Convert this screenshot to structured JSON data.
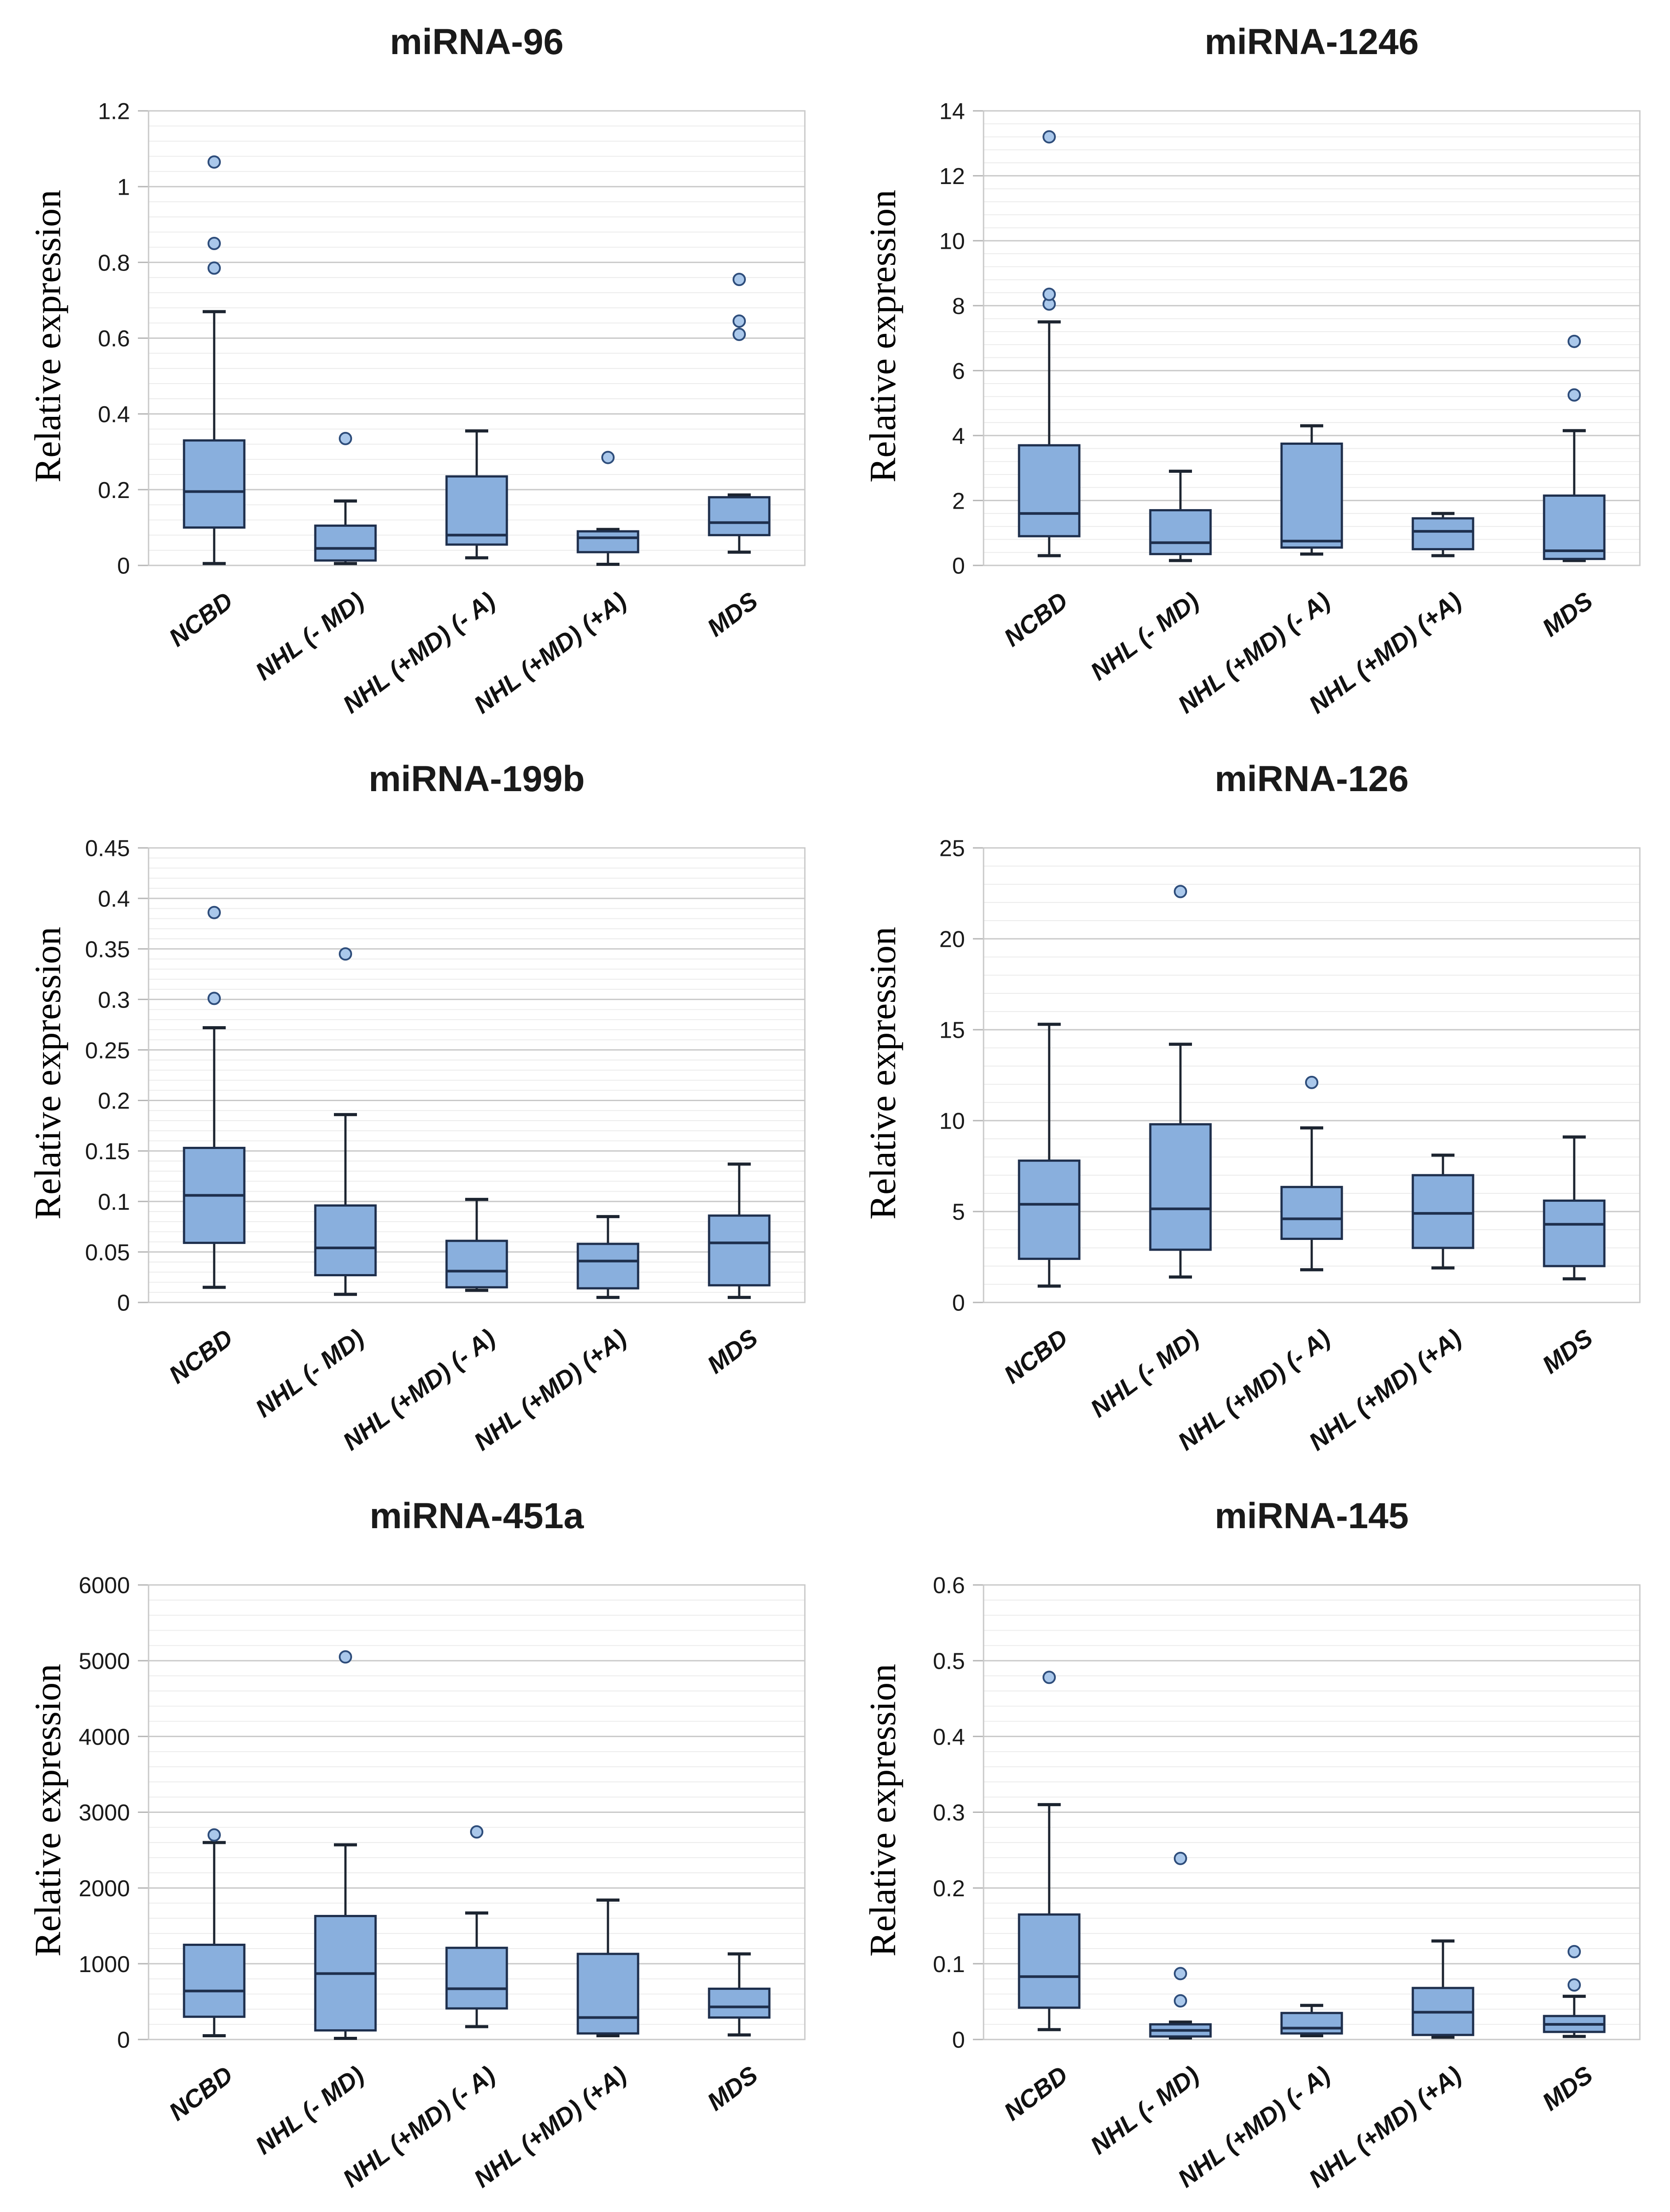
{
  "page": {
    "background": "#ffffff"
  },
  "palette": {
    "box_fill": "#89afdd",
    "box_stroke": "#1e2f4d",
    "whisker": "#1c2430",
    "outlier_fill": "#aac8eb",
    "outlier_stroke": "#2e4d7b",
    "grid_major": "#c9c9c9",
    "grid_minor": "#ececec",
    "axis_tick": "#b5b5b5",
    "text": "#1a1a1a"
  },
  "shared": {
    "categories": [
      "NCBD",
      "NHL (- MD)",
      "NHL (+MD) (- A)",
      "NHL (+MD) (+A)",
      "MDS"
    ]
  },
  "chart_data": [
    {
      "type": "box",
      "title": "miRNA-96",
      "ylabel": "Relative expression",
      "ymin": 0,
      "ymax": 1.2,
      "ytick_major": 0.2,
      "ytick_minor": 0.04,
      "grid": true,
      "legend": false,
      "boxes": [
        {
          "category": "NCBD",
          "whisker_min": 0.005,
          "q1": 0.1,
          "median": 0.195,
          "q3": 0.33,
          "whisker_max": 0.67,
          "outliers": [
            0.785,
            0.85,
            1.065
          ]
        },
        {
          "category": "NHL (- MD)",
          "whisker_min": 0.005,
          "q1": 0.013,
          "median": 0.045,
          "q3": 0.105,
          "whisker_max": 0.17,
          "outliers": [
            0.335
          ]
        },
        {
          "category": "NHL (+MD) (- A)",
          "whisker_min": 0.02,
          "q1": 0.055,
          "median": 0.08,
          "q3": 0.235,
          "whisker_max": 0.355,
          "outliers": []
        },
        {
          "category": "NHL (+MD) (+A)",
          "whisker_min": 0.003,
          "q1": 0.035,
          "median": 0.073,
          "q3": 0.09,
          "whisker_max": 0.095,
          "outliers": [
            0.285
          ]
        },
        {
          "category": "MDS",
          "whisker_min": 0.035,
          "q1": 0.08,
          "median": 0.113,
          "q3": 0.18,
          "whisker_max": 0.186,
          "outliers": [
            0.61,
            0.645,
            0.755
          ]
        }
      ]
    },
    {
      "type": "box",
      "title": "miRNA-1246",
      "ylabel": "Relative expression",
      "ymin": 0,
      "ymax": 14,
      "ytick_major": 2,
      "ytick_minor": 0.4,
      "grid": true,
      "legend": false,
      "boxes": [
        {
          "category": "NCBD",
          "whisker_min": 0.3,
          "q1": 0.9,
          "median": 1.6,
          "q3": 3.7,
          "whisker_max": 7.5,
          "outliers": [
            8.05,
            8.35,
            13.2
          ]
        },
        {
          "category": "NHL (- MD)",
          "whisker_min": 0.15,
          "q1": 0.35,
          "median": 0.7,
          "q3": 1.7,
          "whisker_max": 2.9,
          "outliers": []
        },
        {
          "category": "NHL (+MD) (- A)",
          "whisker_min": 0.35,
          "q1": 0.55,
          "median": 0.75,
          "q3": 3.75,
          "whisker_max": 4.3,
          "outliers": []
        },
        {
          "category": "NHL (+MD) (+A)",
          "whisker_min": 0.3,
          "q1": 0.5,
          "median": 1.05,
          "q3": 1.45,
          "whisker_max": 1.6,
          "outliers": []
        },
        {
          "category": "MDS",
          "whisker_min": 0.15,
          "q1": 0.2,
          "median": 0.45,
          "q3": 2.15,
          "whisker_max": 4.15,
          "outliers": [
            5.25,
            6.9
          ]
        }
      ]
    },
    {
      "type": "box",
      "title": "miRNA-199b",
      "ylabel": "Relative expression",
      "ymin": 0,
      "ymax": 0.45,
      "ytick_major": 0.05,
      "ytick_minor": 0.01,
      "grid": true,
      "legend": false,
      "boxes": [
        {
          "category": "NCBD",
          "whisker_min": 0.015,
          "q1": 0.059,
          "median": 0.106,
          "q3": 0.153,
          "whisker_max": 0.272,
          "outliers": [
            0.301,
            0.386
          ]
        },
        {
          "category": "NHL (- MD)",
          "whisker_min": 0.008,
          "q1": 0.027,
          "median": 0.054,
          "q3": 0.096,
          "whisker_max": 0.186,
          "outliers": [
            0.345
          ]
        },
        {
          "category": "NHL (+MD) (- A)",
          "whisker_min": 0.012,
          "q1": 0.015,
          "median": 0.031,
          "q3": 0.061,
          "whisker_max": 0.102,
          "outliers": []
        },
        {
          "category": "NHL (+MD) (+A)",
          "whisker_min": 0.005,
          "q1": 0.014,
          "median": 0.041,
          "q3": 0.058,
          "whisker_max": 0.085,
          "outliers": []
        },
        {
          "category": "MDS",
          "whisker_min": 0.005,
          "q1": 0.017,
          "median": 0.059,
          "q3": 0.086,
          "whisker_max": 0.137,
          "outliers": []
        }
      ]
    },
    {
      "type": "box",
      "title": "miRNA-126",
      "ylabel": "Relative expression",
      "ymin": 0,
      "ymax": 25,
      "ytick_major": 5,
      "ytick_minor": 1,
      "grid": true,
      "legend": false,
      "boxes": [
        {
          "category": "NCBD",
          "whisker_min": 0.9,
          "q1": 2.4,
          "median": 5.4,
          "q3": 7.8,
          "whisker_max": 15.3,
          "outliers": []
        },
        {
          "category": "NHL (- MD)",
          "whisker_min": 1.4,
          "q1": 2.9,
          "median": 5.15,
          "q3": 9.8,
          "whisker_max": 14.2,
          "outliers": [
            22.6
          ]
        },
        {
          "category": "NHL (+MD) (- A)",
          "whisker_min": 1.8,
          "q1": 3.5,
          "median": 4.6,
          "q3": 6.35,
          "whisker_max": 9.6,
          "outliers": [
            12.1
          ]
        },
        {
          "category": "NHL (+MD) (+A)",
          "whisker_min": 1.9,
          "q1": 3.0,
          "median": 4.9,
          "q3": 7.0,
          "whisker_max": 8.1,
          "outliers": []
        },
        {
          "category": "MDS",
          "whisker_min": 1.3,
          "q1": 2.0,
          "median": 4.3,
          "q3": 5.6,
          "whisker_max": 9.1,
          "outliers": []
        }
      ]
    },
    {
      "type": "box",
      "title": "miRNA-451a",
      "ylabel": "Relative expression",
      "ymin": 0,
      "ymax": 6000,
      "ytick_major": 1000,
      "ytick_minor": 200,
      "grid": true,
      "legend": false,
      "boxes": [
        {
          "category": "NCBD",
          "whisker_min": 50,
          "q1": 300,
          "median": 640,
          "q3": 1250,
          "whisker_max": 2600,
          "outliers": [
            2700
          ]
        },
        {
          "category": "NHL (- MD)",
          "whisker_min": 15,
          "q1": 120,
          "median": 870,
          "q3": 1630,
          "whisker_max": 2570,
          "outliers": [
            5050
          ]
        },
        {
          "category": "NHL (+MD) (- A)",
          "whisker_min": 170,
          "q1": 410,
          "median": 670,
          "q3": 1210,
          "whisker_max": 1670,
          "outliers": [
            2740
          ]
        },
        {
          "category": "NHL (+MD) (+A)",
          "whisker_min": 50,
          "q1": 80,
          "median": 290,
          "q3": 1130,
          "whisker_max": 1840,
          "outliers": []
        },
        {
          "category": "MDS",
          "whisker_min": 60,
          "q1": 290,
          "median": 430,
          "q3": 670,
          "whisker_max": 1130,
          "outliers": []
        }
      ]
    },
    {
      "type": "box",
      "title": "miRNA-145",
      "ylabel": "Relative expression",
      "ymin": 0,
      "ymax": 0.6,
      "ytick_major": 0.1,
      "ytick_minor": 0.02,
      "grid": true,
      "legend": false,
      "boxes": [
        {
          "category": "NCBD",
          "whisker_min": 0.013,
          "q1": 0.042,
          "median": 0.083,
          "q3": 0.165,
          "whisker_max": 0.31,
          "outliers": [
            0.478
          ]
        },
        {
          "category": "NHL (- MD)",
          "whisker_min": 0.002,
          "q1": 0.004,
          "median": 0.012,
          "q3": 0.02,
          "whisker_max": 0.023,
          "outliers": [
            0.051,
            0.087,
            0.239
          ]
        },
        {
          "category": "NHL (+MD) (- A)",
          "whisker_min": 0.005,
          "q1": 0.008,
          "median": 0.015,
          "q3": 0.035,
          "whisker_max": 0.045,
          "outliers": []
        },
        {
          "category": "NHL (+MD) (+A)",
          "whisker_min": 0.003,
          "q1": 0.006,
          "median": 0.036,
          "q3": 0.068,
          "whisker_max": 0.13,
          "outliers": []
        },
        {
          "category": "MDS",
          "whisker_min": 0.004,
          "q1": 0.01,
          "median": 0.02,
          "q3": 0.031,
          "whisker_max": 0.057,
          "outliers": [
            0.072,
            0.116
          ]
        }
      ]
    }
  ]
}
